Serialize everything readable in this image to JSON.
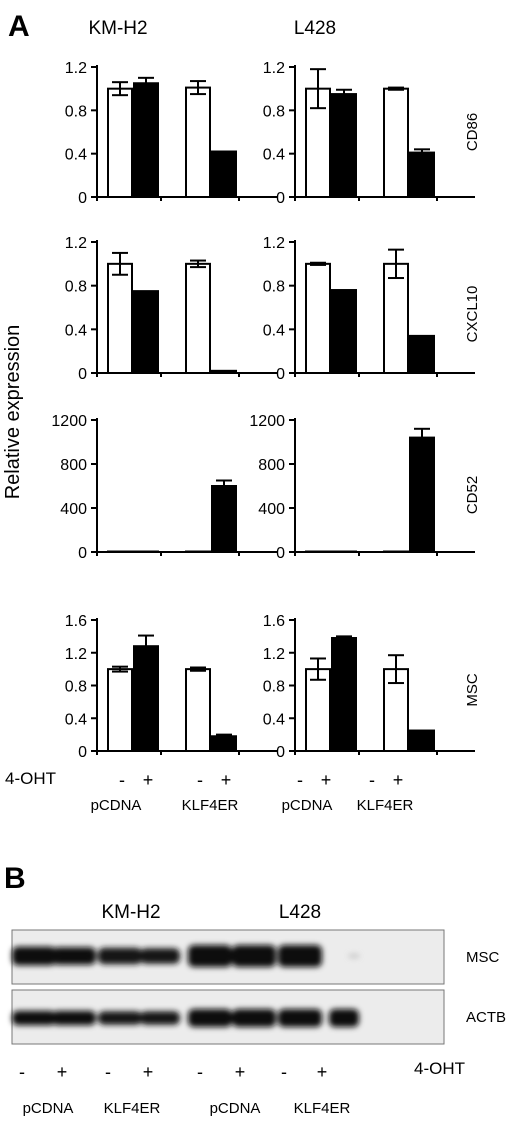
{
  "panel_a": {
    "label": "A",
    "cell_lines": [
      "KM-H2",
      "L428"
    ],
    "ylabel": "Relative expression",
    "treatment_label": "4-OHT",
    "treatment_signs": [
      "-",
      "+",
      "-",
      "+"
    ],
    "vectors": [
      "pCDNA",
      "KLF4ER"
    ]
  },
  "panel_b": {
    "label": "B",
    "cell_lines": [
      "KM-H2",
      "L428"
    ],
    "bands": [
      "MSC",
      "ACTB"
    ],
    "treatment_label": "4-OHT",
    "treatment_signs": [
      "-",
      "+",
      "-",
      "+",
      "-",
      "+",
      "-",
      "+"
    ],
    "vectors": [
      "pCDNA",
      "KLF4ER",
      "pCDNA",
      "KLF4ER"
    ],
    "western_blot": {
      "MSC": [
        0.85,
        0.8,
        0.75,
        0.7,
        1.0,
        1.0,
        1.0,
        0.05
      ],
      "ACTB": [
        0.8,
        0.8,
        0.75,
        0.75,
        1.0,
        1.0,
        1.0,
        1.0
      ]
    }
  },
  "chart_data": [
    {
      "type": "bar",
      "gene": "CD86",
      "cell_line": "KM-H2",
      "categories": [
        "pCDNA -",
        "pCDNA +",
        "KLF4ER -",
        "KLF4ER +"
      ],
      "values": [
        1.0,
        1.05,
        1.01,
        0.42
      ],
      "errors": [
        0.06,
        0.05,
        0.06,
        0
      ],
      "ylim": [
        0,
        1.2
      ],
      "ticks": [
        "0",
        "0.4",
        "0.8",
        "1.2"
      ]
    },
    {
      "type": "bar",
      "gene": "CD86",
      "cell_line": "L428",
      "categories": [
        "pCDNA -",
        "pCDNA +",
        "KLF4ER -",
        "KLF4ER +"
      ],
      "values": [
        1.0,
        0.95,
        1.0,
        0.41
      ],
      "errors": [
        0.18,
        0.04,
        0.01,
        0.03
      ],
      "ylim": [
        0,
        1.2
      ],
      "ticks": [
        "0",
        "0.4",
        "0.8",
        "1.2"
      ]
    },
    {
      "type": "bar",
      "gene": "CXCL10",
      "cell_line": "KM-H2",
      "categories": [
        "pCDNA -",
        "pCDNA +",
        "KLF4ER -",
        "KLF4ER +"
      ],
      "values": [
        1.0,
        0.75,
        1.0,
        0.02
      ],
      "errors": [
        0.1,
        0,
        0.03,
        0
      ],
      "ylim": [
        0,
        1.2
      ],
      "ticks": [
        "0",
        "0.4",
        "0.8",
        "1.2"
      ]
    },
    {
      "type": "bar",
      "gene": "CXCL10",
      "cell_line": "L428",
      "categories": [
        "pCDNA -",
        "pCDNA +",
        "KLF4ER -",
        "KLF4ER +"
      ],
      "values": [
        1.0,
        0.76,
        1.0,
        0.34
      ],
      "errors": [
        0.01,
        0,
        0.13,
        0
      ],
      "ylim": [
        0,
        1.2
      ],
      "ticks": [
        "0",
        "0.4",
        "0.8",
        "1.2"
      ]
    },
    {
      "type": "bar",
      "gene": "CD52",
      "cell_line": "KM-H2",
      "categories": [
        "pCDNA -",
        "pCDNA +",
        "KLF4ER -",
        "KLF4ER +"
      ],
      "values": [
        1,
        1,
        1,
        600
      ],
      "errors": [
        0,
        0,
        0,
        50
      ],
      "ylim": [
        0,
        1200
      ],
      "ticks": [
        "0",
        "400",
        "800",
        "1200"
      ]
    },
    {
      "type": "bar",
      "gene": "CD52",
      "cell_line": "L428",
      "categories": [
        "pCDNA -",
        "pCDNA +",
        "KLF4ER -",
        "KLF4ER +"
      ],
      "values": [
        1,
        1,
        1,
        1040
      ],
      "errors": [
        0,
        0,
        0,
        80
      ],
      "ylim": [
        0,
        1200
      ],
      "ticks": [
        "0",
        "400",
        "800",
        "1200"
      ]
    },
    {
      "type": "bar",
      "gene": "MSC",
      "cell_line": "KM-H2",
      "categories": [
        "pCDNA -",
        "pCDNA +",
        "KLF4ER -",
        "KLF4ER +"
      ],
      "values": [
        1.0,
        1.28,
        1.0,
        0.18
      ],
      "errors": [
        0.03,
        0.13,
        0.02,
        0.02
      ],
      "ylim": [
        0,
        1.6
      ],
      "ticks": [
        "0",
        "0.4",
        "0.8",
        "1.2",
        "1.6"
      ]
    },
    {
      "type": "bar",
      "gene": "MSC",
      "cell_line": "L428",
      "categories": [
        "pCDNA -",
        "pCDNA +",
        "KLF4ER -",
        "KLF4ER +"
      ],
      "values": [
        1.0,
        1.38,
        1.0,
        0.25
      ],
      "errors": [
        0.13,
        0.02,
        0.17,
        0
      ],
      "ylim": [
        0,
        1.6
      ],
      "ticks": [
        "0",
        "0.4",
        "0.8",
        "1.2",
        "1.6"
      ]
    }
  ]
}
